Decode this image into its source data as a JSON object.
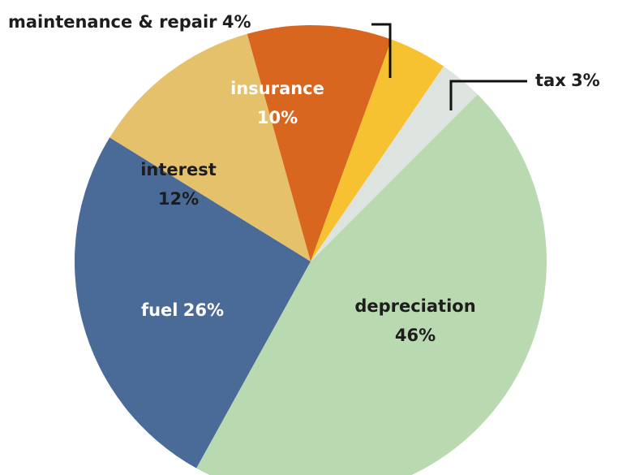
{
  "chart_data": {
    "type": "pie",
    "categories": [
      "depreciation",
      "fuel",
      "interest",
      "insurance",
      "maintenance & repair",
      "tax"
    ],
    "values": [
      46,
      26,
      12,
      10,
      4,
      3
    ],
    "value_labels": [
      "46%",
      "26%",
      "12%",
      "10%",
      "4%",
      "3%"
    ],
    "colors": [
      "#b9d9b1",
      "#4a6a98",
      "#e5c16c",
      "#d8661f",
      "#f6c232",
      "#dde3df"
    ]
  }
}
